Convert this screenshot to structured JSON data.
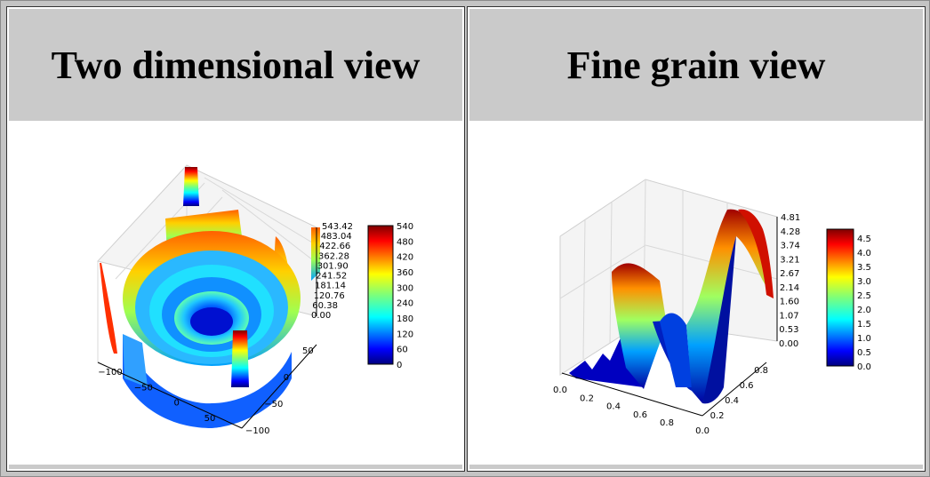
{
  "colors": {
    "header_bg": "#cacaca",
    "frame_bg": "#c4c4c4",
    "colormap": "jet"
  },
  "panels": [
    {
      "title": "Two dimensional view"
    },
    {
      "title": "Fine grain view"
    }
  ],
  "chart_data": [
    {
      "type": "surface3d",
      "title": "Two dimensional view",
      "x_ticks": [
        "−100",
        "−50",
        "0",
        "50"
      ],
      "y_ticks": [
        "−100",
        "−50",
        "0",
        "50"
      ],
      "z_ticks": [
        "0.00",
        "60.38",
        "120.76",
        "181.14",
        "241.52",
        "301.90",
        "362.28",
        "422.66",
        "483.04",
        "543.42"
      ],
      "zlim": [
        0,
        543.42
      ],
      "colorbar_ticks": [
        "0",
        "60",
        "120",
        "180",
        "240",
        "300",
        "360",
        "420",
        "480",
        "540"
      ],
      "colorbar_range": [
        0,
        540
      ],
      "xlim": [
        -100,
        100
      ],
      "ylim": [
        -100,
        100
      ]
    },
    {
      "type": "surface3d",
      "title": "Fine grain view",
      "x_ticks": [
        "0.0",
        "0.2",
        "0.4",
        "0.6",
        "0.8"
      ],
      "y_ticks": [
        "0.0",
        "0.2",
        "0.4",
        "0.6",
        "0.8"
      ],
      "z_ticks": [
        "0.00",
        "0.53",
        "1.07",
        "1.60",
        "2.14",
        "2.67",
        "3.21",
        "3.74",
        "4.28",
        "4.81"
      ],
      "zlim": [
        0,
        4.81
      ],
      "colorbar_ticks": [
        "0.0",
        "0.5",
        "1.0",
        "1.5",
        "2.0",
        "2.5",
        "3.0",
        "3.5",
        "4.0",
        "4.5"
      ],
      "colorbar_range": [
        0,
        4.8
      ],
      "xlim": [
        0,
        1
      ],
      "ylim": [
        0,
        1
      ]
    }
  ]
}
